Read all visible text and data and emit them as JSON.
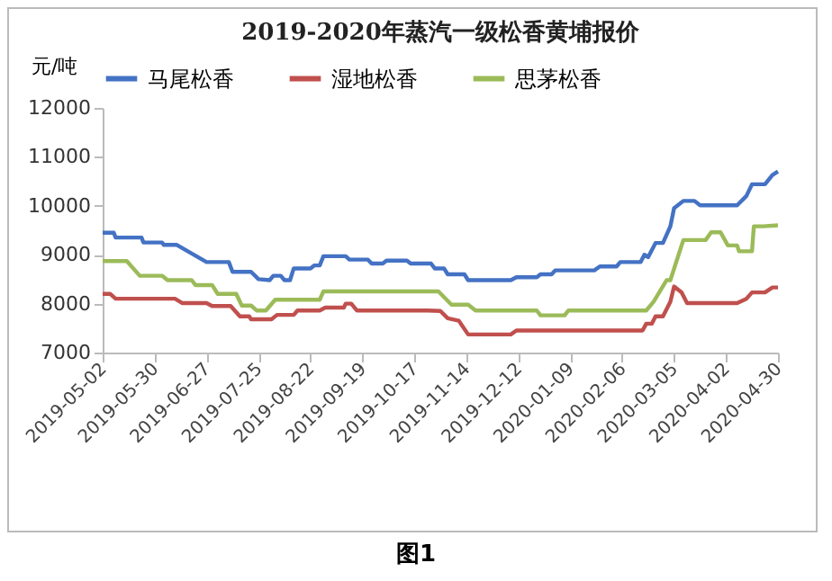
{
  "chart_data": {
    "type": "line",
    "title": "2019-2020年蒸汽一级松香黄埔报价",
    "ylabel": "元/吨",
    "annotations": [
      "图1"
    ],
    "legend": "top",
    "grid": false,
    "marker": "none",
    "line_style": "solid",
    "xlim": [
      "2019-05-02",
      "2020-04-30"
    ],
    "xticks": [
      "2019-05-02",
      "2019-05-30",
      "2019-06-27",
      "2019-07-25",
      "2019-08-22",
      "2019-09-19",
      "2019-10-17",
      "2019-11-14",
      "2019-12-12",
      "2020-01-09",
      "2020-02-06",
      "2020-03-05",
      "2020-04-02",
      "2020-04-30"
    ],
    "ylim": [
      7000,
      12000
    ],
    "yticks": [
      7000,
      8000,
      9000,
      10000,
      11000,
      12000
    ],
    "series": [
      {
        "name": "马尾松香",
        "color": "#4472c4",
        "x": [
          "2019-05-02",
          "2019-05-08",
          "2019-05-09",
          "2019-05-23",
          "2019-05-24",
          "2019-06-03",
          "2019-06-04",
          "2019-06-11",
          "2019-06-27",
          "2019-07-09",
          "2019-07-11",
          "2019-07-21",
          "2019-07-25",
          "2019-07-31",
          "2019-08-02",
          "2019-08-06",
          "2019-08-08",
          "2019-08-11",
          "2019-08-13",
          "2019-08-22",
          "2019-08-24",
          "2019-08-27",
          "2019-08-29",
          "2019-09-10",
          "2019-09-12",
          "2019-09-22",
          "2019-09-24",
          "2019-09-30",
          "2019-10-02",
          "2019-10-13",
          "2019-10-15",
          "2019-10-26",
          "2019-10-28",
          "2019-11-02",
          "2019-11-04",
          "2019-11-13",
          "2019-11-15",
          "2019-12-08",
          "2019-12-11",
          "2019-12-22",
          "2019-12-24",
          "2019-12-30",
          "2020-01-01",
          "2020-01-22",
          "2020-01-25",
          "2020-02-03",
          "2020-02-05",
          "2020-02-16",
          "2020-02-18",
          "2020-02-20",
          "2020-02-24",
          "2020-02-28",
          "2020-03-03",
          "2020-03-05",
          "2020-03-10",
          "2020-03-16",
          "2020-03-19",
          "2020-04-08",
          "2020-04-13",
          "2020-04-16",
          "2020-04-23",
          "2020-04-27",
          "2020-04-30"
        ],
        "values": [
          9450,
          9450,
          9350,
          9350,
          9250,
          9250,
          9200,
          9200,
          8850,
          8850,
          8650,
          8650,
          8500,
          8480,
          8570,
          8570,
          8480,
          8480,
          8720,
          8720,
          8780,
          8780,
          8970,
          8970,
          8900,
          8900,
          8820,
          8820,
          8880,
          8880,
          8820,
          8820,
          8720,
          8720,
          8600,
          8600,
          8480,
          8480,
          8540,
          8540,
          8600,
          8600,
          8680,
          8680,
          8760,
          8760,
          8850,
          8850,
          9000,
          8950,
          9240,
          9240,
          9580,
          9950,
          10100,
          10100,
          10010,
          10010,
          10200,
          10440,
          10440,
          10630,
          10700
        ]
      },
      {
        "name": "湿地松香",
        "color": "#c0504d",
        "x": [
          "2019-05-02",
          "2019-05-06",
          "2019-05-09",
          "2019-06-10",
          "2019-06-14",
          "2019-06-27",
          "2019-06-30",
          "2019-07-10",
          "2019-07-15",
          "2019-07-20",
          "2019-07-21",
          "2019-08-01",
          "2019-08-04",
          "2019-08-13",
          "2019-08-15",
          "2019-08-27",
          "2019-08-30",
          "2019-09-09",
          "2019-09-10",
          "2019-09-13",
          "2019-09-16",
          "2019-10-24",
          "2019-10-31",
          "2019-11-04",
          "2019-11-10",
          "2019-11-15",
          "2019-12-08",
          "2019-12-11",
          "2020-02-17",
          "2020-02-19",
          "2020-02-22",
          "2020-02-24",
          "2020-02-28",
          "2020-03-03",
          "2020-03-05",
          "2020-03-09",
          "2020-03-12",
          "2020-04-08",
          "2020-04-13",
          "2020-04-16",
          "2020-04-23",
          "2020-04-27",
          "2020-04-30"
        ],
        "values": [
          8200,
          8200,
          8100,
          8100,
          8010,
          8010,
          7950,
          7950,
          7740,
          7740,
          7680,
          7680,
          7770,
          7770,
          7860,
          7860,
          7920,
          7920,
          8000,
          8000,
          7860,
          7860,
          7850,
          7700,
          7650,
          7370,
          7370,
          7450,
          7450,
          7590,
          7590,
          7740,
          7740,
          8040,
          8350,
          8230,
          8010,
          8010,
          8100,
          8230,
          8230,
          8330,
          8330
        ]
      },
      {
        "name": "思茅松香",
        "color": "#9bbb59",
        "x": [
          "2019-05-02",
          "2019-05-15",
          "2019-05-22",
          "2019-06-03",
          "2019-06-06",
          "2019-06-19",
          "2019-06-21",
          "2019-06-30",
          "2019-07-03",
          "2019-07-13",
          "2019-07-16",
          "2019-07-21",
          "2019-07-24",
          "2019-07-29",
          "2019-08-03",
          "2019-08-27",
          "2019-08-29",
          "2019-10-30",
          "2019-11-06",
          "2019-11-15",
          "2019-11-19",
          "2019-12-22",
          "2019-12-24",
          "2020-01-06",
          "2020-01-08",
          "2020-02-19",
          "2020-02-23",
          "2020-03-01",
          "2020-03-03",
          "2020-03-10",
          "2020-03-22",
          "2020-03-25",
          "2020-03-30",
          "2020-04-03",
          "2020-04-08",
          "2020-04-09",
          "2020-04-16",
          "2020-04-17",
          "2020-04-22",
          "2020-04-30"
        ],
        "values": [
          8870,
          8870,
          8570,
          8570,
          8480,
          8480,
          8380,
          8380,
          8200,
          8200,
          7960,
          7960,
          7860,
          7860,
          8080,
          8080,
          8250,
          8250,
          7980,
          7980,
          7860,
          7860,
          7760,
          7760,
          7860,
          7860,
          8040,
          8480,
          8480,
          9300,
          9300,
          9460,
          9460,
          9190,
          9190,
          9070,
          9070,
          9580,
          9580,
          9600
        ]
      }
    ]
  }
}
